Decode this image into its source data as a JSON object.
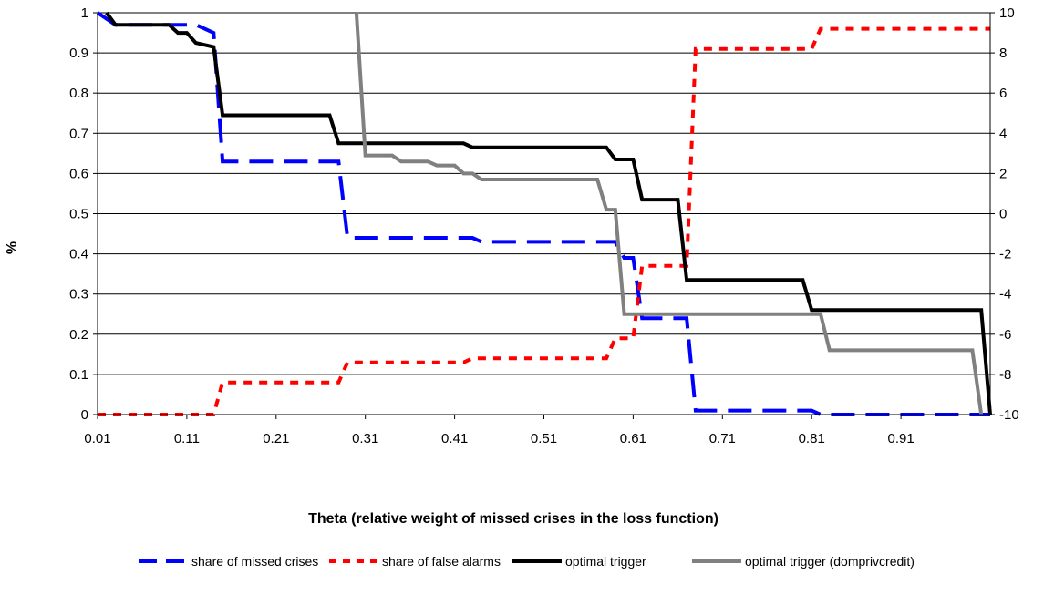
{
  "chart_data": {
    "type": "line",
    "title": "",
    "xlabel": "Theta (relative weight of missed crises in the loss function)",
    "ylabel": "%",
    "xlim": [
      0.01,
      1.01
    ],
    "ylim": [
      0,
      1
    ],
    "y2lim": [
      -10,
      10
    ],
    "x_ticks": [
      "0.01",
      "0.11",
      "0.21",
      "0.31",
      "0.41",
      "0.51",
      "0.61",
      "0.71",
      "0.81",
      "0.91"
    ],
    "y_ticks": [
      "0",
      "0.1",
      "0.2",
      "0.3",
      "0.4",
      "0.5",
      "0.6",
      "0.7",
      "0.8",
      "0.9",
      "1"
    ],
    "y2_ticks": [
      "-10",
      "-8",
      "-6",
      "-4",
      "-2",
      "0",
      "2",
      "4",
      "6",
      "8",
      "10"
    ],
    "grid": true,
    "legend_position": "bottom",
    "series": [
      {
        "name": "share of missed crises",
        "axis": "left",
        "color": "#0000ff",
        "style": "long-dash",
        "points": [
          [
            0.01,
            1
          ],
          [
            0.03,
            0.97
          ],
          [
            0.12,
            0.97
          ],
          [
            0.13,
            0.96
          ],
          [
            0.14,
            0.95
          ],
          [
            0.15,
            0.63
          ],
          [
            0.28,
            0.63
          ],
          [
            0.29,
            0.44
          ],
          [
            0.43,
            0.44
          ],
          [
            0.44,
            0.43
          ],
          [
            0.59,
            0.43
          ],
          [
            0.6,
            0.39
          ],
          [
            0.61,
            0.39
          ],
          [
            0.62,
            0.24
          ],
          [
            0.67,
            0.24
          ],
          [
            0.68,
            0.01
          ],
          [
            0.81,
            0.01
          ],
          [
            0.82,
            0
          ],
          [
            1.01,
            0
          ]
        ]
      },
      {
        "name": "share of false alarms",
        "axis": "left",
        "color": "#ff0000",
        "style": "short-dash",
        "points": [
          [
            0.01,
            0
          ],
          [
            0.14,
            0
          ],
          [
            0.15,
            0.08
          ],
          [
            0.28,
            0.08
          ],
          [
            0.29,
            0.13
          ],
          [
            0.42,
            0.13
          ],
          [
            0.43,
            0.14
          ],
          [
            0.58,
            0.14
          ],
          [
            0.59,
            0.19
          ],
          [
            0.61,
            0.19
          ],
          [
            0.62,
            0.37
          ],
          [
            0.67,
            0.37
          ],
          [
            0.68,
            0.91
          ],
          [
            0.81,
            0.91
          ],
          [
            0.82,
            0.96
          ],
          [
            1.01,
            0.96
          ]
        ]
      },
      {
        "name": "optimal trigger",
        "axis": "right",
        "color": "#000000",
        "style": "solid",
        "points": [
          [
            0.02,
            10
          ],
          [
            0.03,
            9.4
          ],
          [
            0.09,
            9.4
          ],
          [
            0.1,
            9
          ],
          [
            0.11,
            9
          ],
          [
            0.12,
            8.5
          ],
          [
            0.14,
            8.3
          ],
          [
            0.15,
            4.9
          ],
          [
            0.27,
            4.9
          ],
          [
            0.28,
            3.5
          ],
          [
            0.42,
            3.5
          ],
          [
            0.43,
            3.3
          ],
          [
            0.58,
            3.3
          ],
          [
            0.59,
            2.7
          ],
          [
            0.61,
            2.7
          ],
          [
            0.62,
            0.7
          ],
          [
            0.66,
            0.7
          ],
          [
            0.67,
            -3.3
          ],
          [
            0.8,
            -3.3
          ],
          [
            0.81,
            -4.8
          ],
          [
            1.0,
            -4.8
          ],
          [
            1.01,
            -10
          ]
        ]
      },
      {
        "name": "optimal trigger (domprivcredit)",
        "axis": "right",
        "color": "#808080",
        "style": "solid",
        "points": [
          [
            0.3,
            10
          ],
          [
            0.31,
            2.9
          ],
          [
            0.34,
            2.9
          ],
          [
            0.35,
            2.6
          ],
          [
            0.38,
            2.6
          ],
          [
            0.39,
            2.4
          ],
          [
            0.41,
            2.4
          ],
          [
            0.42,
            2.0
          ],
          [
            0.43,
            2.0
          ],
          [
            0.44,
            1.7
          ],
          [
            0.57,
            1.7
          ],
          [
            0.58,
            0.2
          ],
          [
            0.59,
            0.2
          ],
          [
            0.6,
            -5
          ],
          [
            0.72,
            -5
          ],
          [
            0.82,
            -5
          ],
          [
            0.83,
            -6.8
          ],
          [
            0.99,
            -6.8
          ],
          [
            1.0,
            -10
          ]
        ]
      }
    ]
  }
}
